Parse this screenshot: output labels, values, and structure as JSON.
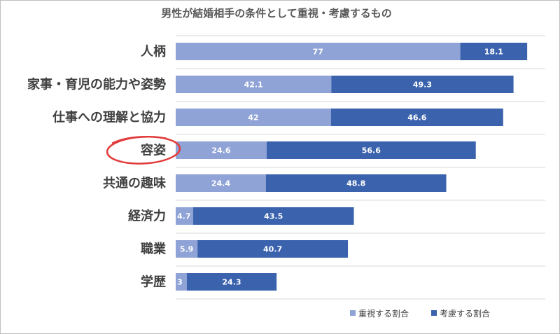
{
  "chart_data": {
    "type": "bar",
    "orientation": "horizontal",
    "stacked": true,
    "title": "男性が結婚相手の条件として重視・考慮するもの",
    "categories": [
      "人柄",
      "家事・育児の能力や姿勢",
      "仕事への理解と協力",
      "容姿",
      "共通の趣味",
      "経済力",
      "職業",
      "学歴"
    ],
    "series": [
      {
        "name": "重視する割合",
        "color": "#8fa3d6",
        "values": [
          77,
          42.1,
          42,
          24.6,
          24.4,
          4.7,
          5.9,
          3
        ]
      },
      {
        "name": "考慮する割合",
        "color": "#3b63ad",
        "values": [
          18.1,
          49.3,
          46.6,
          56.6,
          48.8,
          43.5,
          40.7,
          24.3
        ]
      }
    ],
    "xlim": [
      0,
      100
    ],
    "grid": true,
    "legend": "bottom-right",
    "annotation": {
      "target": "容姿",
      "shape": "circle",
      "color": "#e23b3b"
    }
  }
}
